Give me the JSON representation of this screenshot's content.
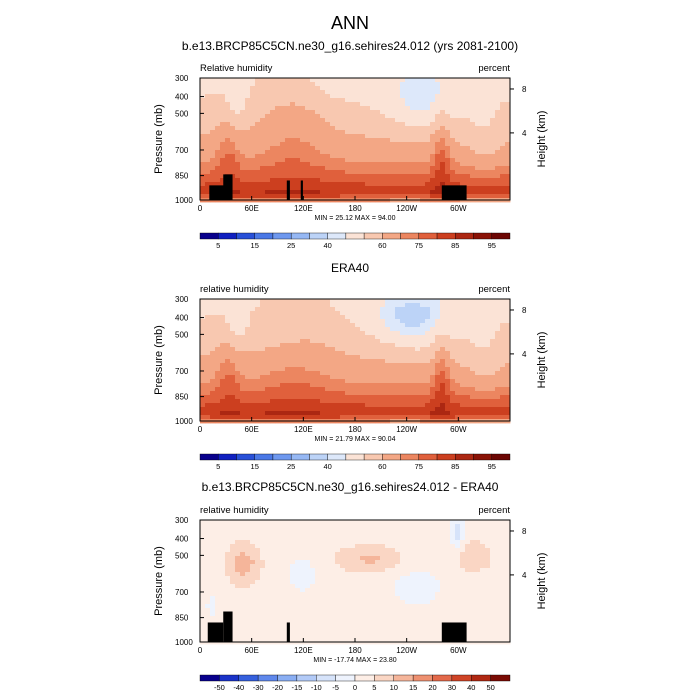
{
  "chart_data": {
    "type": "heatmap",
    "title": "ANN",
    "panels": [
      {
        "title": "b.e13.BRCP85C5CN.ne30_g16.sehires24.012 (yrs 2081-2100)",
        "left_label": "Relative humidity",
        "right_label": "percent",
        "ylabel": "Pressure (mb)",
        "y2label": "Height (km)",
        "y_ticks": [
          "300",
          "400",
          "500",
          "700",
          "850",
          "1000"
        ],
        "y2_ticks": [
          "8",
          "4"
        ],
        "x_ticks": [
          "0",
          "60E",
          "120E",
          "180",
          "120W",
          "60W"
        ],
        "stats": "MIN = 25.12  MAX = 94.00",
        "colorbar_labels": [
          "5",
          "15",
          "25",
          "40",
          "60",
          "75",
          "85",
          "95"
        ],
        "min": 25.12,
        "max": 94.0
      },
      {
        "title": "ERA40",
        "left_label": "relative humidity",
        "right_label": "percent",
        "ylabel": "Pressure (mb)",
        "y2label": "Height (km)",
        "y_ticks": [
          "300",
          "400",
          "500",
          "700",
          "850",
          "1000"
        ],
        "y2_ticks": [
          "8",
          "4"
        ],
        "x_ticks": [
          "0",
          "60E",
          "120E",
          "180",
          "120W",
          "60W"
        ],
        "stats": "MIN = 21.79  MAX = 90.04",
        "colorbar_labels": [
          "5",
          "15",
          "25",
          "40",
          "60",
          "75",
          "85",
          "95"
        ],
        "min": 21.79,
        "max": 90.04
      },
      {
        "title": "b.e13.BRCP85C5CN.ne30_g16.sehires24.012 - ERA40",
        "left_label": "relative humidity",
        "right_label": "percent",
        "ylabel": "Pressure (mb)",
        "y2label": "Height (km)",
        "y_ticks": [
          "300",
          "400",
          "500",
          "700",
          "850",
          "1000"
        ],
        "y2_ticks": [
          "8",
          "4"
        ],
        "x_ticks": [
          "0",
          "60E",
          "120E",
          "180",
          "120W",
          "60W"
        ],
        "stats": "MIN = -17.74  MAX = 23.80",
        "colorbar_labels": [
          "-50",
          "-40",
          "-30",
          "-20",
          "-15",
          "-10",
          "-5",
          "0",
          "5",
          "10",
          "15",
          "20",
          "30",
          "40",
          "50"
        ],
        "min": -17.74,
        "max": 23.8
      }
    ]
  }
}
